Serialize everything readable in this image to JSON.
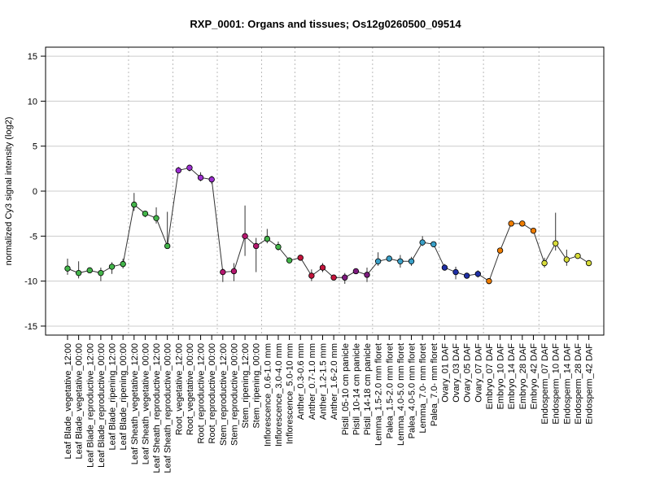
{
  "chart_data": {
    "type": "line",
    "title": "RXP_0001: Organs and tissues; Os12g0260500_09514",
    "ylabel": "normalized Cy3 signal intensity (log2)",
    "xlabel": "",
    "ylim": [
      -16,
      16
    ],
    "yticks": [
      -15,
      -10,
      -5,
      0,
      5,
      10,
      15
    ],
    "grid": true,
    "categories": [
      "Leaf Blade_vegetative_12:00",
      "Leaf Blade_vegetative_00:00",
      "Leaf Blade_reproductive_12:00",
      "Leaf Blade_reproductive_00:00",
      "Leaf Blade_ripening_12:00",
      "Leaf Blade_ripening_00:00",
      "Leaf Sheath_vegetative_12:00",
      "Leaf Sheath_vegetative_00:00",
      "Leaf Sheath_reproductive_12:00",
      "Leaf Sheath_reproductive_00:00",
      "Root_vegetative_12:00",
      "Root_vegetative_00:00",
      "Root_reproductive_12:00",
      "Root_reproductive_00:00",
      "Stem_reproductive_12:00",
      "Stem_reproductive_00:00",
      "Stem_ripening_12:00",
      "Stem_ripening_00:00",
      "Inflorescence_0.6-1.0 mm",
      "Inflorescence_3.0-4.0 mm",
      "Inflorescence_5.0-10 mm",
      "Anther_0.3-0.6 mm",
      "Anther_0.7-1.0 mm",
      "Anther_1.2-1.5 mm",
      "Anther_1.6-2.0 mm",
      "Pistil_05-10 cm panicle",
      "Pistil_10-14 cm panicle",
      "Pistil_14-18 cm panicle",
      "Lemma_1.5-2.0 mm floret",
      "Palea_1.5-2.0 mm floret",
      "Lemma_4.0-5.0 mm floret",
      "Palea_4.0-5.0 mm floret",
      "Lemma_7.0- mm floret",
      "Palea_7.0- mm floret",
      "Ovary_01 DAF",
      "Ovary_03 DAF",
      "Ovary_05 DAF",
      "Ovary_07 DAF",
      "Embryo_07 DAF",
      "Embryo_10 DAF",
      "Embryo_14 DAF",
      "Embryo_28 DAF",
      "Embryo_42 DAF",
      "Endosperm_07 DAF",
      "Endosperm_10 DAF",
      "Endosperm_14 DAF",
      "Endosperm_28 DAF",
      "Endosperm_42 DAF"
    ],
    "values": [
      -8.6,
      -9.1,
      -8.8,
      -9.1,
      -8.4,
      -8.1,
      -1.5,
      -2.5,
      -3.0,
      -6.1,
      2.3,
      2.6,
      1.5,
      1.3,
      -9.0,
      -8.9,
      -5.0,
      -6.1,
      -5.3,
      -6.2,
      -7.7,
      -7.4,
      -9.4,
      -8.5,
      -9.6,
      -9.6,
      -8.9,
      -9.3,
      -7.8,
      -7.5,
      -7.8,
      -7.8,
      -5.7,
      -5.9,
      -8.5,
      -9.0,
      -9.4,
      -9.2,
      -10.0,
      -6.6,
      -3.6,
      -3.6,
      -4.4,
      -8.0,
      -5.8,
      -7.6,
      -7.2,
      -8.0
    ],
    "errors_low": [
      -9.3,
      -9.7,
      -9.0,
      -10.0,
      -9.2,
      -8.6,
      -2.2,
      -2.9,
      -3.6,
      -6.1,
      2.0,
      2.2,
      1.1,
      0.8,
      -10.1,
      -10.0,
      -7.2,
      -9.0,
      -5.8,
      -6.6,
      -7.9,
      -7.5,
      -10.0,
      -9.0,
      -9.8,
      -10.3,
      -9.2,
      -10.1,
      -8.3,
      -7.7,
      -8.5,
      -8.3,
      -6.1,
      -6.2,
      -8.8,
      -9.8,
      -9.6,
      -9.6,
      -10.2,
      -6.8,
      -3.8,
      -3.9,
      -4.6,
      -8.5,
      -6.6,
      -8.3,
      -7.5,
      -8.2
    ],
    "errors_high": [
      -7.5,
      -7.8,
      -8.5,
      -8.5,
      -7.9,
      -7.5,
      -0.2,
      -2.2,
      -1.8,
      -2.3,
      2.7,
      2.8,
      2.1,
      1.7,
      -8.6,
      -8.0,
      -1.6,
      -5.2,
      -4.2,
      -5.6,
      -7.4,
      -7.2,
      -8.7,
      -8.0,
      -9.4,
      -9.1,
      -8.6,
      -8.5,
      -6.8,
      -7.3,
      -7.1,
      -7.3,
      -5.0,
      -5.6,
      -8.1,
      -8.4,
      -9.2,
      -8.8,
      -9.8,
      -6.4,
      -3.4,
      -3.3,
      -4.2,
      -7.4,
      -2.4,
      -6.5,
      -6.9,
      -7.8
    ],
    "colors": [
      "#43b54a",
      "#43b54a",
      "#43b54a",
      "#43b54a",
      "#43b54a",
      "#43b54a",
      "#43b54a",
      "#43b54a",
      "#43b54a",
      "#43b54a",
      "#9c2fd0",
      "#9c2fd0",
      "#9c2fd0",
      "#9c2fd0",
      "#b5176f",
      "#b5176f",
      "#b5176f",
      "#b5176f",
      "#43b54a",
      "#43b54a",
      "#43b54a",
      "#c4143c",
      "#c4143c",
      "#c4143c",
      "#c4143c",
      "#7e1a7e",
      "#7e1a7e",
      "#7e1a7e",
      "#3aa0c8",
      "#3aa0c8",
      "#3aa0c8",
      "#3aa0c8",
      "#3aa0c8",
      "#3aa0c8",
      "#1f2fa6",
      "#1f2fa6",
      "#1f2fa6",
      "#1f2fa6",
      "#ef7d00",
      "#ef7d00",
      "#ef7d00",
      "#ef7d00",
      "#ef7d00",
      "#d8dc3a",
      "#d8dc3a",
      "#d8dc3a",
      "#d8dc3a",
      "#d8dc3a"
    ],
    "group_boundaries_after": [
      5,
      9,
      13,
      17,
      20,
      24,
      27,
      33,
      37,
      42
    ]
  }
}
